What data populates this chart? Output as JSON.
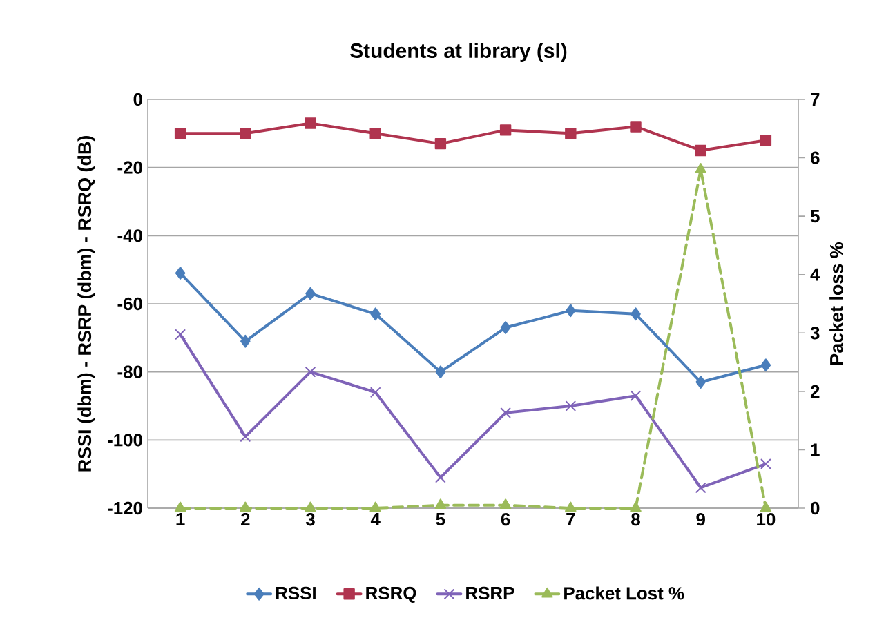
{
  "chart_data": {
    "type": "line",
    "title": "Students at library (sl)",
    "ylabel": "RSSI (dbm) - RSRP (dbm) - RSRQ (dB)",
    "y2label": "Packet loss %",
    "categories": [
      "1",
      "2",
      "3",
      "4",
      "5",
      "6",
      "7",
      "8",
      "9",
      "10"
    ],
    "series": [
      {
        "name": "RSSI",
        "color": "#4a7ebb",
        "marker": "diamond",
        "values": [
          -51,
          -71,
          -57,
          -63,
          -80,
          -67,
          -62,
          -63,
          -83,
          -78
        ]
      },
      {
        "name": "RSRQ",
        "color": "#b0344f",
        "marker": "square",
        "values": [
          -10,
          -10,
          -7,
          -10,
          -13,
          -9,
          -10,
          -8,
          -15,
          -12
        ]
      },
      {
        "name": "RSRP",
        "color": "#7f63b8",
        "marker": "cross",
        "values": [
          -69,
          -99,
          -80,
          -86,
          -111,
          -92,
          -90,
          -87,
          -114,
          -107
        ]
      },
      {
        "name": "Packet Lost %",
        "color": "#9bbb59",
        "marker": "triangle",
        "line_style": "dashed",
        "axis": "y2",
        "values": [
          0,
          0,
          0,
          0,
          0.05,
          0.05,
          0,
          0,
          5.8,
          0
        ]
      }
    ],
    "ylim": [
      -120,
      0
    ],
    "yticks": [
      -120,
      -100,
      -80,
      -60,
      -40,
      -20,
      0
    ],
    "y2lim": [
      0,
      7
    ],
    "y2ticks": [
      0,
      1,
      2,
      3,
      4,
      5,
      6,
      7
    ],
    "grid": "y",
    "legend": "bottom",
    "line_style": "solid"
  }
}
